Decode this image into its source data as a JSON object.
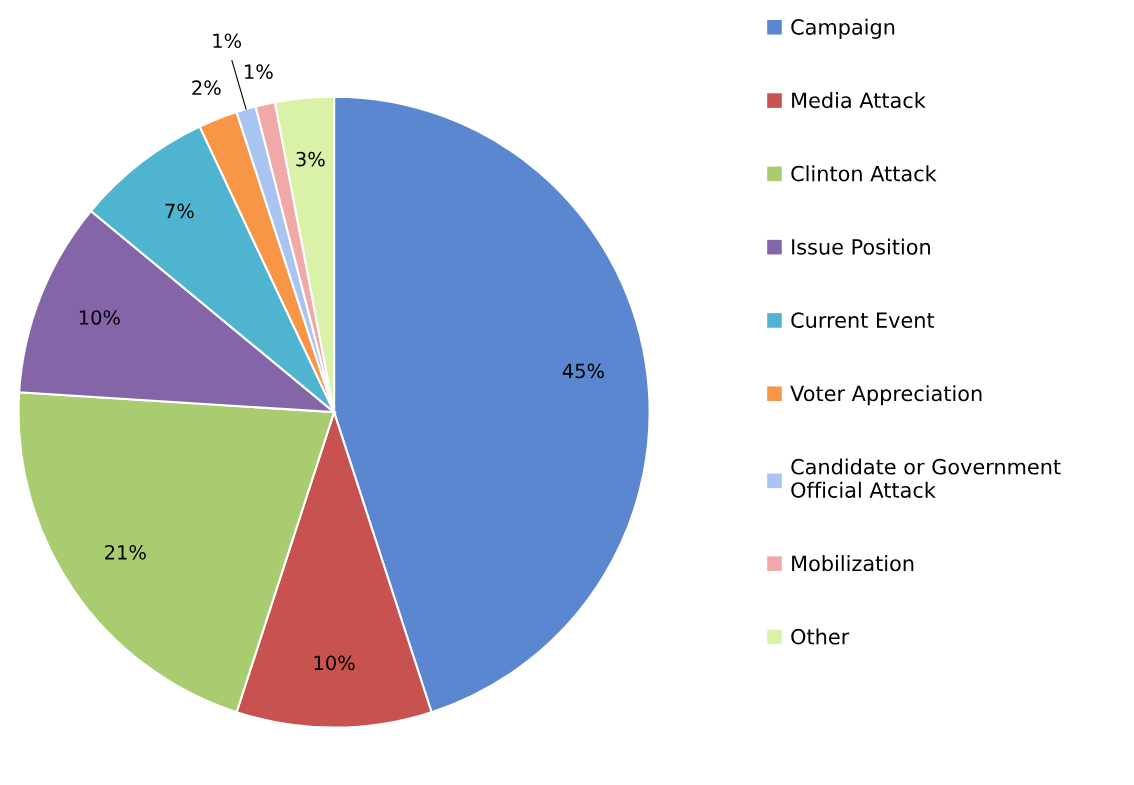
{
  "chart_data": {
    "type": "pie",
    "categories": [
      "Campaign",
      "Media Attack",
      "Clinton Attack",
      "Issue Position",
      "Current Event",
      "Voter Appreciation",
      "Candidate or Government\nOfficial Attack",
      "Mobilization",
      "Other"
    ],
    "values": [
      45,
      10,
      21,
      10,
      7,
      2,
      1,
      1,
      3
    ],
    "value_labels": [
      "45%",
      "10%",
      "21%",
      "10%",
      "7%",
      "2%",
      "1%",
      "1%",
      "3%"
    ],
    "colors": [
      "#5b87d0",
      "#c85250",
      "#a9cc70",
      "#8466a8",
      "#4fb4d0",
      "#f79646",
      "#a9c4f0",
      "#f0a8a8",
      "#d9f2a8"
    ],
    "legend": "right"
  }
}
